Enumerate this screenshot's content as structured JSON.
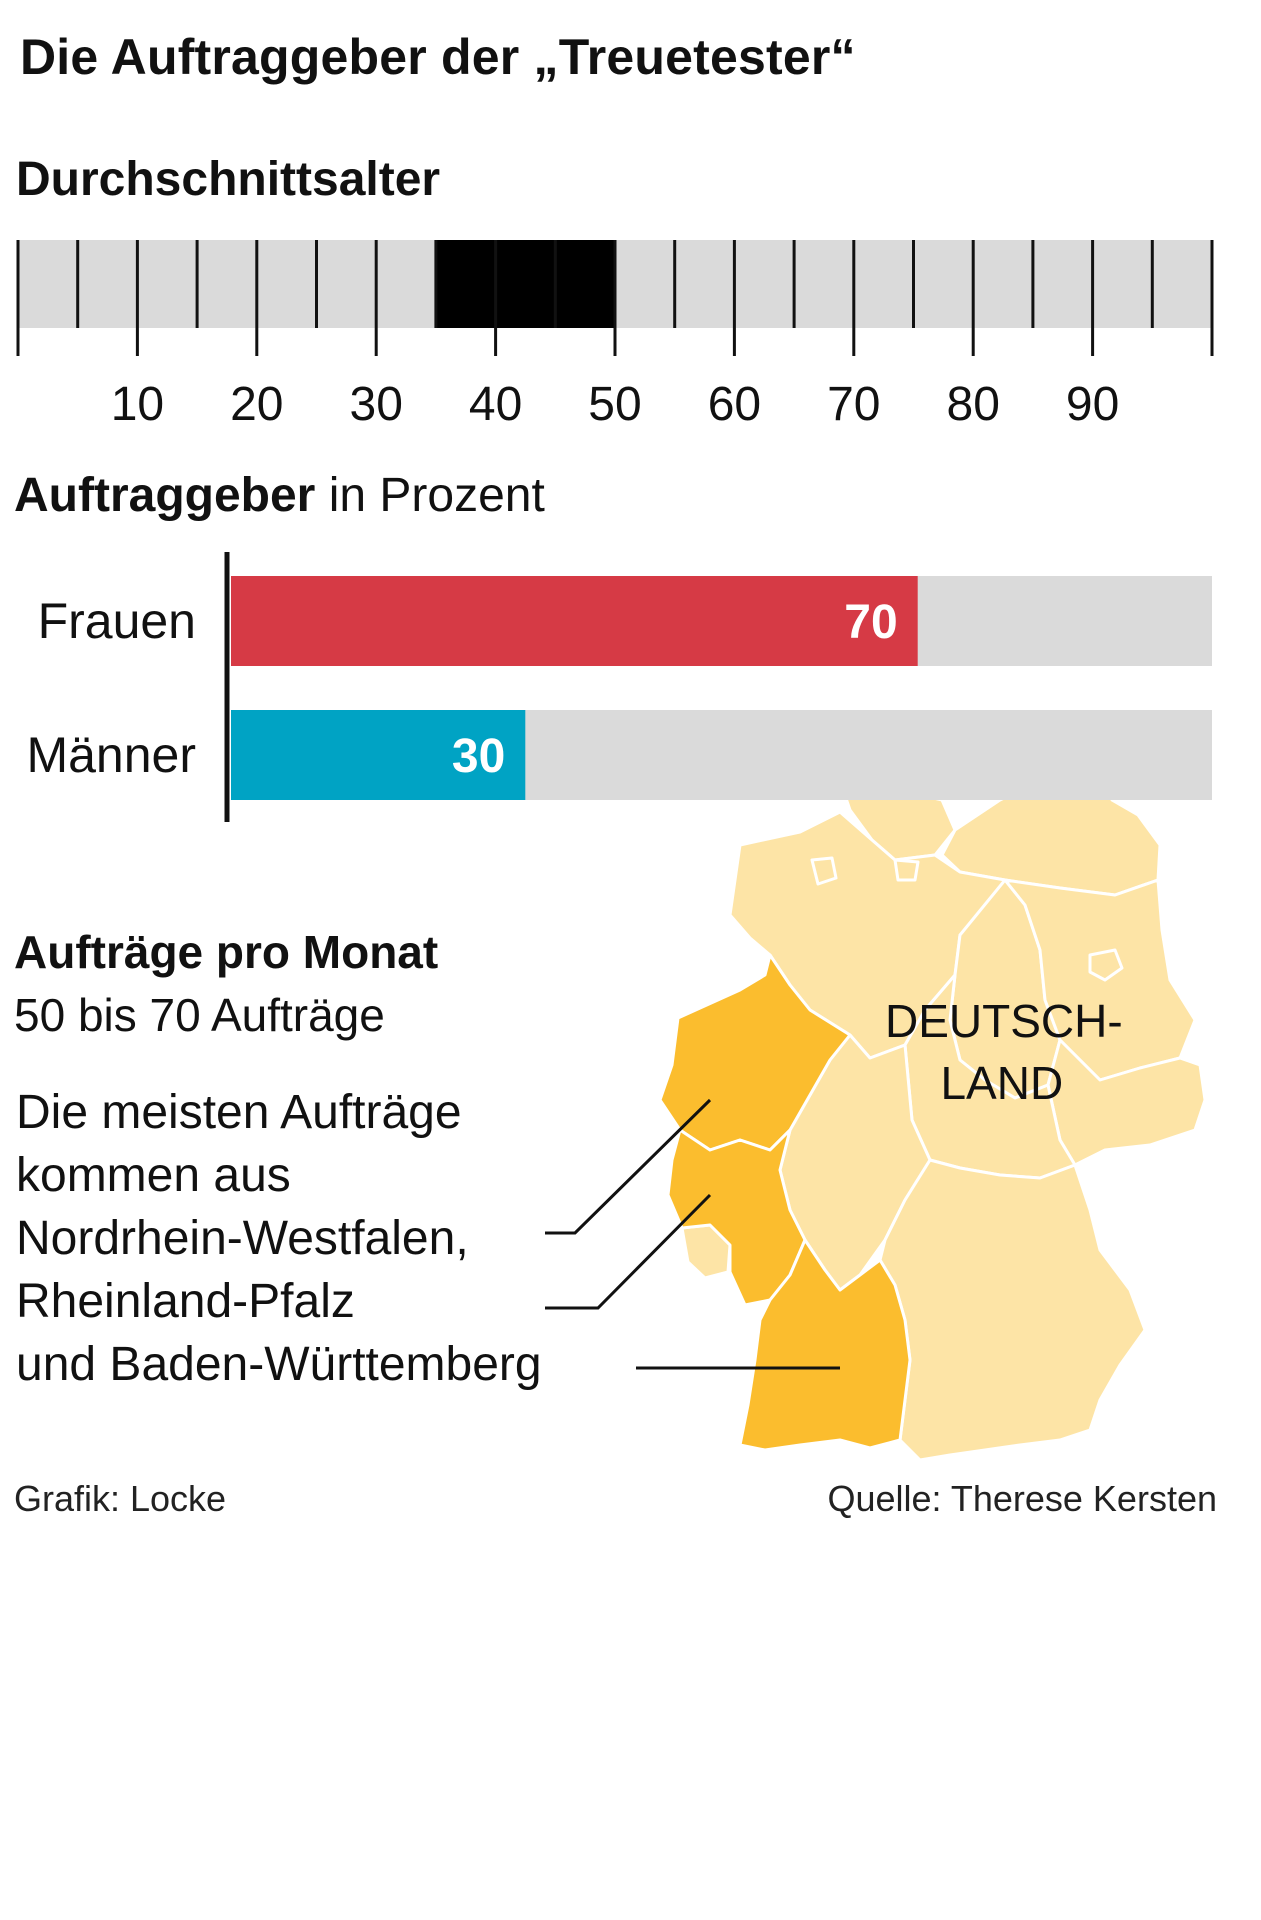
{
  "title": "Die Auftraggeber der „Treuetester“",
  "colors": {
    "track": "#dadada",
    "age_range": "#000000",
    "women": "#d63a45",
    "men": "#00a3c4",
    "map_light": "#fde4a6",
    "map_highlight": "#fbbd2e",
    "map_border": "#ffffff"
  },
  "age": {
    "heading": "Durchschnittsalter"
  },
  "share": {
    "heading_bold": "Auftraggeber",
    "heading_rest": " in Prozent"
  },
  "orders": {
    "heading": "Aufträge pro Monat",
    "range": "50 bis 70 Aufträge",
    "desc_lines": [
      "Die meisten Aufträge",
      "kommen aus",
      "Nordrhein-Westfalen,",
      "Rheinland-Pfalz",
      "und Baden-Württemberg"
    ]
  },
  "map": {
    "label_line1": "DEUTSCH-",
    "label_line2": "LAND",
    "highlighted_states": [
      "Nordrhein-Westfalen",
      "Rheinland-Pfalz",
      "Baden-Württemberg"
    ]
  },
  "footer": {
    "left": "Grafik: Locke",
    "right": "Quelle: Therese Kersten"
  },
  "chart_data": [
    {
      "type": "bar",
      "title": "Durchschnittsalter",
      "xlim": [
        0,
        100
      ],
      "tick_labels": [
        "10",
        "20",
        "30",
        "40",
        "50",
        "60",
        "70",
        "80",
        "90"
      ],
      "tick_values": [
        10,
        20,
        30,
        40,
        50,
        60,
        70,
        80,
        90
      ],
      "highlight_range": [
        35,
        50
      ]
    },
    {
      "type": "bar",
      "title": "Auftraggeber in Prozent",
      "xlim": [
        0,
        100
      ],
      "categories": [
        "Frauen",
        "Männer"
      ],
      "values": [
        70,
        30
      ],
      "value_labels": [
        "70",
        "30"
      ]
    }
  ]
}
